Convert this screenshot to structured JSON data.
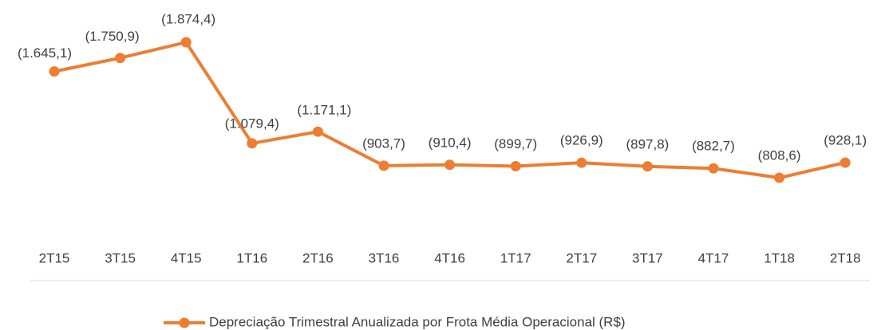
{
  "chart_data": {
    "type": "line",
    "categories": [
      "2T15",
      "3T15",
      "4T15",
      "1T16",
      "2T16",
      "3T16",
      "4T16",
      "1T17",
      "2T17",
      "3T17",
      "4T17",
      "1T18",
      "2T18"
    ],
    "series": [
      {
        "name": "Depreciação Trimestral Anualizada por Frota Média Operacional (R$)",
        "color": "#ED7D31",
        "values": [
          1645.1,
          1750.9,
          1874.4,
          1079.4,
          1171.1,
          903.7,
          910.4,
          899.7,
          926.9,
          897.8,
          882.7,
          808.6,
          928.1
        ],
        "value_labels": [
          "(1.645,1)",
          "(1.750,9)",
          "(1.874,4)",
          "(1.079,4)",
          "(1.171,1)",
          "(903,7)",
          "(910,4)",
          "(899,7)",
          "(926,9)",
          "(897,8)",
          "(882,7)",
          "(808,6)",
          "(928,1)"
        ]
      }
    ],
    "legend": "bottom"
  }
}
